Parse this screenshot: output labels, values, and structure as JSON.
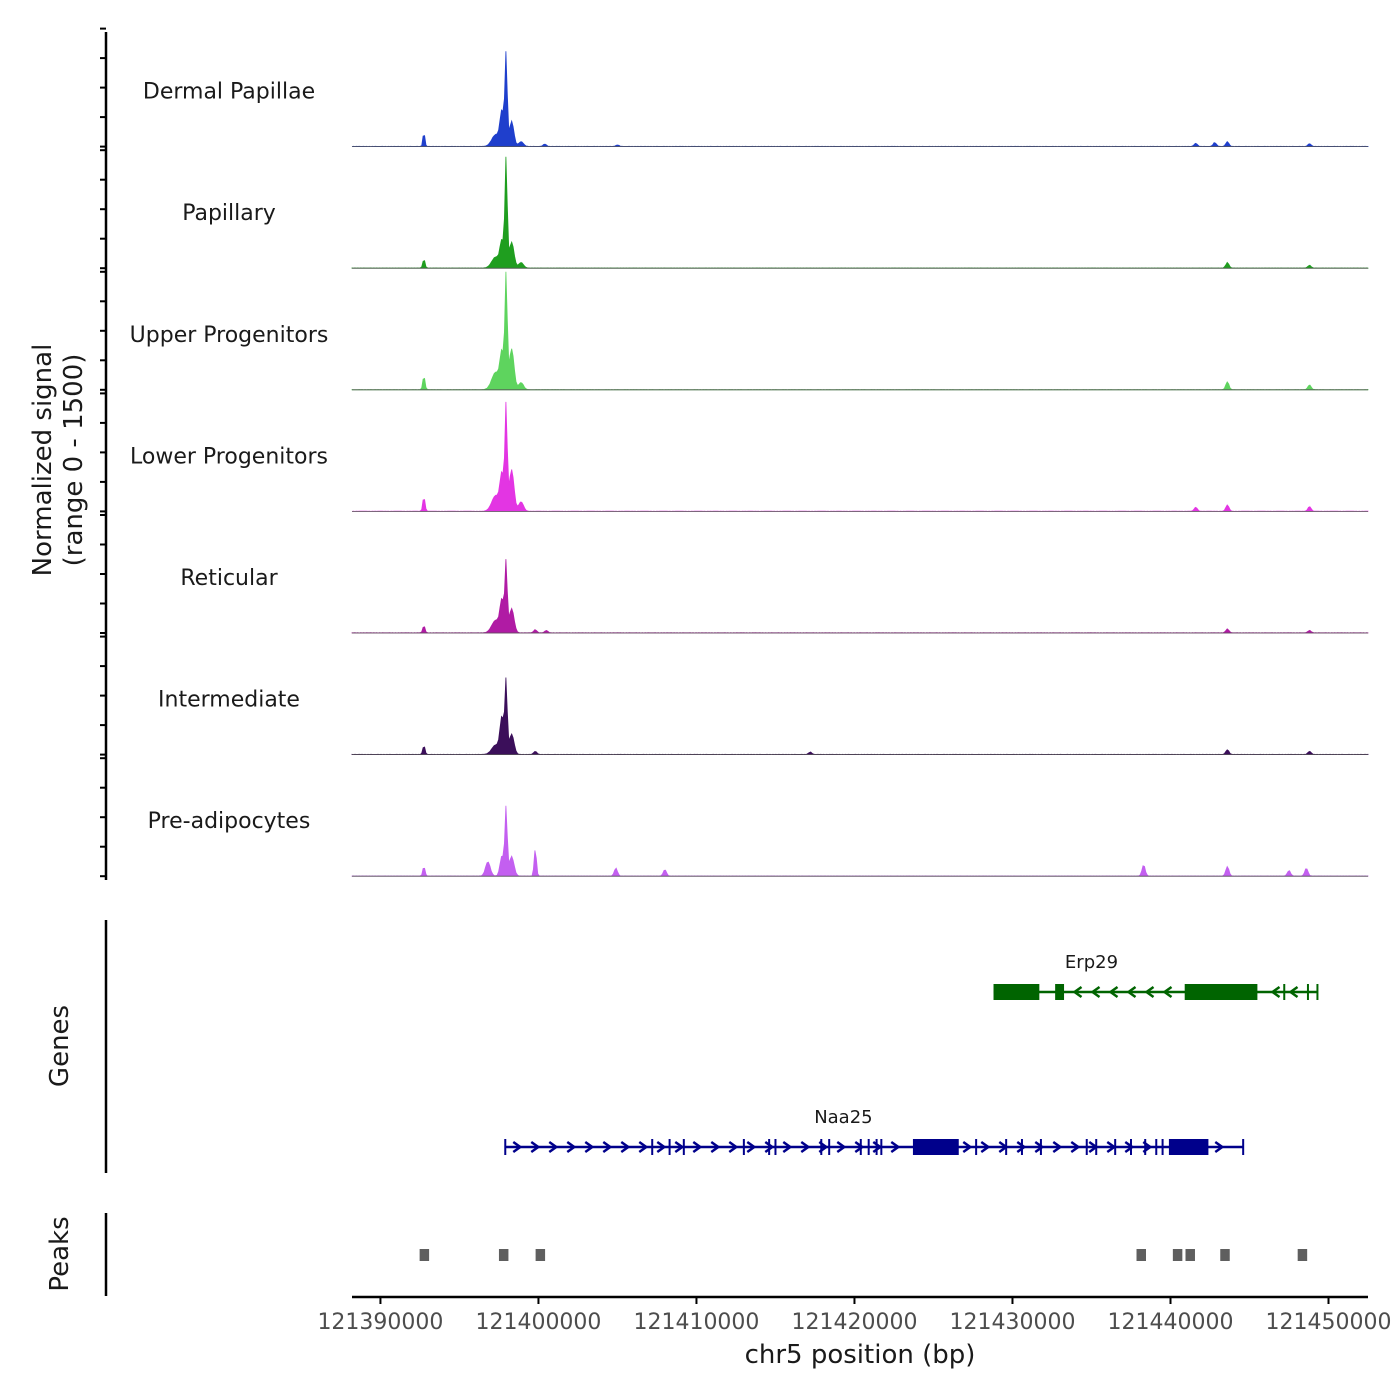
{
  "chart_data": {
    "type": "area",
    "ylabel_line1": "Normalized signal",
    "ylabel_line2": "(range 0 - 1500)",
    "y_range": [
      0,
      1500
    ],
    "genes_label": "Genes",
    "peaks_label": "Peaks",
    "xlabel": "chr5 position (bp)",
    "x_range": [
      121388200,
      121452500
    ],
    "x_ticks": [
      121390000,
      121400000,
      121410000,
      121420000,
      121430000,
      121440000,
      121450000
    ],
    "x_tick_labels": [
      "121390000",
      "121400000",
      "121410000",
      "121420000",
      "121430000",
      "121440000",
      "121450000"
    ],
    "tracks": [
      {
        "name": "Dermal Papillae",
        "color": "#1f3fcc",
        "peaks": [
          [
            121392750,
            180,
            120
          ],
          [
            121397300,
            150,
            500
          ],
          [
            121397700,
            430,
            250
          ],
          [
            121397950,
            1140,
            140
          ],
          [
            121398300,
            320,
            280
          ],
          [
            121398900,
            60,
            300
          ],
          [
            121400400,
            30,
            200
          ],
          [
            121405000,
            20,
            200
          ],
          [
            121441600,
            40,
            200
          ],
          [
            121442800,
            50,
            200
          ],
          [
            121443600,
            60,
            200
          ],
          [
            121448800,
            35,
            200
          ]
        ]
      },
      {
        "name": "Papillary",
        "color": "#1f9e1f",
        "peaks": [
          [
            121392750,
            110,
            140
          ],
          [
            121397300,
            140,
            500
          ],
          [
            121397700,
            330,
            250
          ],
          [
            121397950,
            1360,
            140
          ],
          [
            121398300,
            330,
            300
          ],
          [
            121398900,
            70,
            300
          ],
          [
            121443600,
            70,
            200
          ],
          [
            121448800,
            35,
            200
          ]
        ]
      },
      {
        "name": "Upper Progenitors",
        "color": "#5ed45e",
        "peaks": [
          [
            121392750,
            170,
            140
          ],
          [
            121397300,
            220,
            500
          ],
          [
            121397700,
            450,
            250
          ],
          [
            121397950,
            1450,
            140
          ],
          [
            121398300,
            520,
            300
          ],
          [
            121398900,
            90,
            300
          ],
          [
            121443600,
            100,
            200
          ],
          [
            121448800,
            60,
            200
          ]
        ]
      },
      {
        "name": "Lower Progenitors",
        "color": "#e335e3",
        "peaks": [
          [
            121392750,
            180,
            140
          ],
          [
            121397300,
            200,
            500
          ],
          [
            121397700,
            450,
            250
          ],
          [
            121397950,
            1300,
            140
          ],
          [
            121398300,
            530,
            300
          ],
          [
            121398900,
            120,
            300
          ],
          [
            121441600,
            50,
            200
          ],
          [
            121443600,
            80,
            200
          ],
          [
            121448800,
            60,
            200
          ]
        ]
      },
      {
        "name": "Reticular",
        "color": "#b01ba4",
        "peaks": [
          [
            121392750,
            90,
            140
          ],
          [
            121397300,
            160,
            500
          ],
          [
            121397700,
            400,
            250
          ],
          [
            121397950,
            860,
            140
          ],
          [
            121398300,
            310,
            300
          ],
          [
            121399800,
            40,
            200
          ],
          [
            121400500,
            30,
            200
          ],
          [
            121443600,
            50,
            200
          ],
          [
            121448800,
            30,
            200
          ]
        ]
      },
      {
        "name": "Intermediate",
        "color": "#3b0f5a",
        "peaks": [
          [
            121392750,
            110,
            140
          ],
          [
            121397300,
            120,
            500
          ],
          [
            121397700,
            460,
            250
          ],
          [
            121397950,
            900,
            140
          ],
          [
            121398300,
            260,
            300
          ],
          [
            121399800,
            40,
            200
          ],
          [
            121417200,
            30,
            200
          ],
          [
            121443600,
            60,
            200
          ],
          [
            121448800,
            40,
            200
          ]
        ]
      },
      {
        "name": "Pre-adipocytes",
        "color": "#c35ff0",
        "peaks": [
          [
            121392750,
            120,
            140
          ],
          [
            121396800,
            180,
            300
          ],
          [
            121397700,
            260,
            250
          ],
          [
            121397950,
            850,
            140
          ],
          [
            121398300,
            250,
            300
          ],
          [
            121399800,
            350,
            140
          ],
          [
            121404900,
            100,
            200
          ],
          [
            121408000,
            80,
            200
          ],
          [
            121438300,
            140,
            200
          ],
          [
            121443600,
            120,
            200
          ],
          [
            121447500,
            70,
            200
          ],
          [
            121448600,
            100,
            200
          ]
        ]
      }
    ],
    "genes": [
      {
        "name": "Erp29",
        "color": "#006400",
        "strand": "-",
        "start": 121428800,
        "end": 121449300,
        "exons": [
          [
            121428800,
            121431700
          ],
          [
            121432700,
            121433200
          ],
          [
            121440900,
            121445500
          ]
        ],
        "ticks": [
          121433200,
          121447200,
          121448700,
          121449300
        ]
      },
      {
        "name": "Naa25",
        "color": "#00008b",
        "strand": "+",
        "start": 121397900,
        "end": 121444600,
        "exons": [
          [
            121423700,
            121426600
          ],
          [
            121439900,
            121442400
          ]
        ],
        "ticks": [
          121397900,
          121407200,
          121408300,
          121409200,
          121413000,
          121414600,
          121415000,
          121417900,
          121418400,
          121420400,
          121420900,
          121421400,
          121421700,
          121427700,
          121429600,
          121430600,
          121431800,
          121434700,
          121435300,
          121436500,
          121437500,
          121438400,
          121439100,
          121439500,
          121444600
        ]
      }
    ],
    "peak_regions": [
      [
        121392480,
        121393080
      ],
      [
        121397500,
        121398100
      ],
      [
        121399820,
        121400420
      ],
      [
        121437850,
        121438450
      ],
      [
        121440150,
        121440750
      ],
      [
        121440950,
        121441550
      ],
      [
        121443150,
        121443750
      ],
      [
        121448050,
        121448650
      ]
    ]
  }
}
